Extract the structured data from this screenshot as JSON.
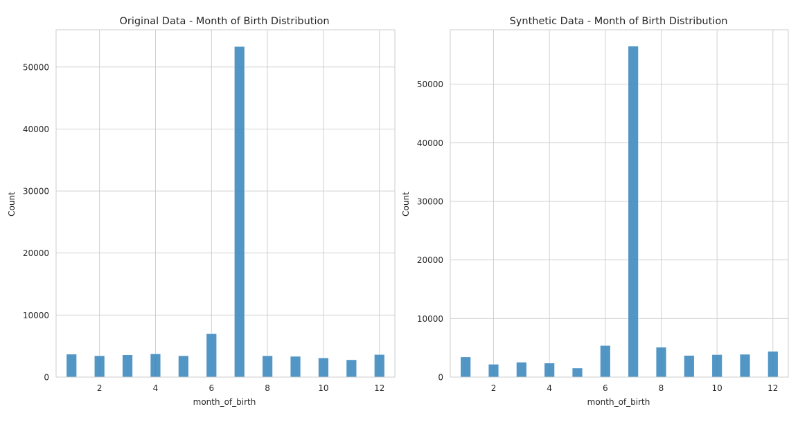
{
  "colors": {
    "bar": "#3a87be",
    "grid": "#cccccc",
    "background": "#ffffff"
  },
  "chart_data": [
    {
      "type": "bar",
      "title": "Original Data - Month of Birth Distribution",
      "xlabel": "month_of_birth",
      "ylabel": "Count",
      "xlim": [
        0.45,
        12.55
      ],
      "ylim": [
        0,
        56000
      ],
      "xticks": [
        2,
        4,
        6,
        8,
        10,
        12
      ],
      "yticks": [
        0,
        10000,
        20000,
        30000,
        40000,
        50000
      ],
      "bar_width": 0.3667,
      "grid": true,
      "series": [
        {
          "x": [
            1,
            2,
            3,
            4,
            5,
            6,
            7,
            8,
            9,
            10,
            11,
            12
          ],
          "values": [
            3700,
            3450,
            3600,
            3750,
            3450,
            7000,
            53300,
            3450,
            3350,
            3100,
            2800,
            3650
          ]
        }
      ]
    },
    {
      "type": "bar",
      "title": "Synthetic Data - Month of Birth Distribution",
      "xlabel": "month_of_birth",
      "ylabel": "Count",
      "xlim": [
        0.45,
        12.55
      ],
      "ylim": [
        0,
        59300
      ],
      "xticks": [
        2,
        4,
        6,
        8,
        10,
        12
      ],
      "yticks": [
        0,
        10000,
        20000,
        30000,
        40000,
        50000
      ],
      "bar_width": 0.3667,
      "grid": true,
      "series": [
        {
          "x": [
            1,
            2,
            3,
            4,
            5,
            6,
            7,
            8,
            9,
            10,
            11,
            12
          ],
          "values": [
            3450,
            2200,
            2550,
            2400,
            1550,
            5400,
            56500,
            5100,
            3700,
            3850,
            3900,
            4400
          ]
        }
      ]
    }
  ]
}
